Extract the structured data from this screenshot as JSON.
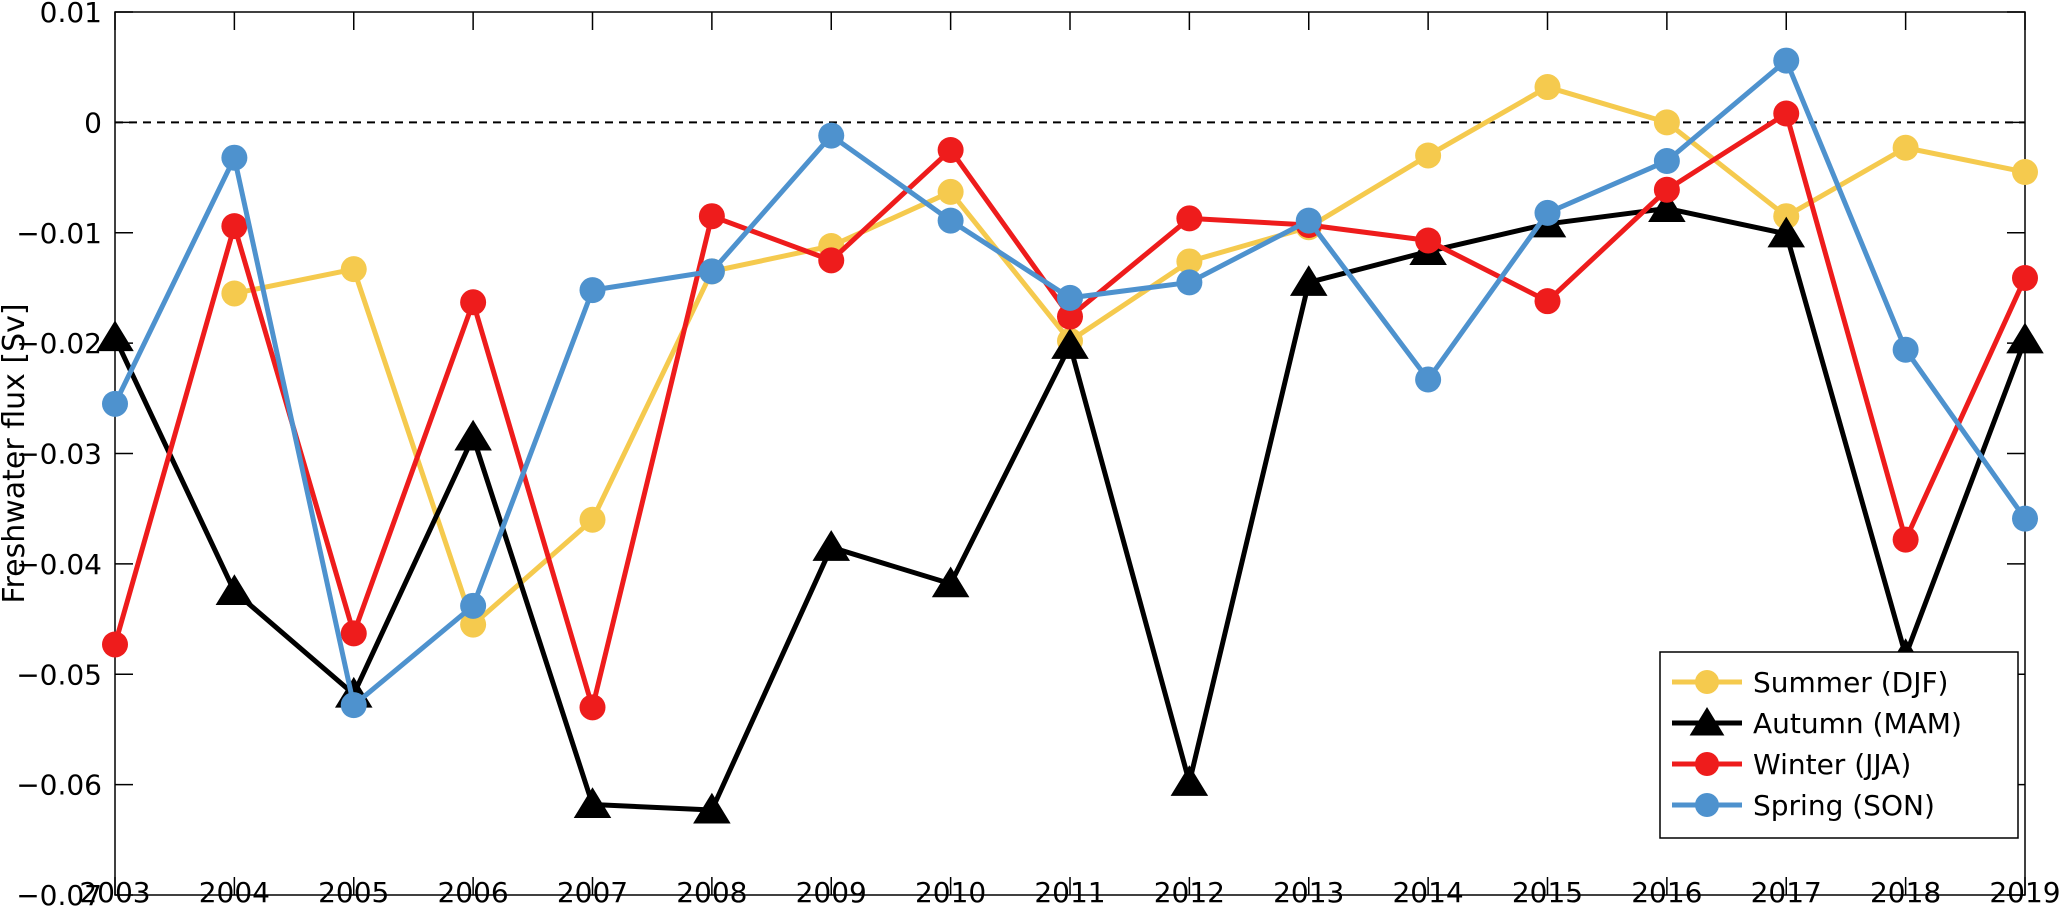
{
  "chart_data": {
    "type": "line",
    "title": "",
    "xlabel": "",
    "ylabel": "Freshwater flux [Sv]",
    "x": [
      2003,
      2004,
      2005,
      2006,
      2007,
      2008,
      2009,
      2010,
      2011,
      2012,
      2013,
      2014,
      2015,
      2016,
      2017,
      2018,
      2019
    ],
    "xticks": [
      "2003",
      "2004",
      "2005",
      "2006",
      "2007",
      "2008",
      "2009",
      "2010",
      "2011",
      "2012",
      "2013",
      "2014",
      "2015",
      "2016",
      "2017",
      "2018",
      "2019"
    ],
    "yticks": [
      "0.01",
      "0",
      "-0.01",
      "-0.02",
      "-0.03",
      "-0.04",
      "-0.05",
      "-0.06",
      "-0.07"
    ],
    "ytick_values": [
      0.01,
      0,
      -0.01,
      -0.02,
      -0.03,
      -0.04,
      -0.05,
      -0.06,
      -0.07
    ],
    "xlim": [
      2003,
      2019
    ],
    "ylim": [
      -0.07,
      0.01
    ],
    "grid": false,
    "reference_line": {
      "y": 0,
      "style": "dashed"
    },
    "legend_position": "bottom-right",
    "series": [
      {
        "name": "Summer (DJF)",
        "color": "#F5CA4E",
        "marker": "circle",
        "x": [
          2004,
          2005,
          2006,
          2007,
          2008,
          2009,
          2010,
          2011,
          2012,
          2013,
          2014,
          2015,
          2016,
          2017,
          2018,
          2019
        ],
        "values": [
          -0.0155,
          -0.0133,
          -0.0455,
          -0.036,
          -0.0135,
          -0.0112,
          -0.0063,
          -0.0198,
          -0.0126,
          -0.0095,
          -0.003,
          0.0032,
          0.0,
          -0.0085,
          -0.0023,
          -0.0045
        ]
      },
      {
        "name": "Autumn (MAM)",
        "color": "#000000",
        "marker": "triangle",
        "x": [
          2003,
          2004,
          2005,
          2006,
          2007,
          2008,
          2009,
          2010,
          2011,
          2012,
          2013,
          2014,
          2015,
          2016,
          2017,
          2018,
          2019
        ],
        "values": [
          -0.0195,
          -0.0425,
          -0.0518,
          -0.0285,
          -0.0618,
          -0.0623,
          -0.0385,
          -0.0418,
          -0.0202,
          -0.0598,
          -0.0145,
          -0.0117,
          -0.0092,
          -0.0078,
          -0.0101,
          -0.0483,
          -0.0197
        ]
      },
      {
        "name": "Winter (JJA)",
        "color": "#EE1C1C",
        "marker": "circle",
        "x": [
          2003,
          2004,
          2005,
          2006,
          2007,
          2008,
          2009,
          2010,
          2011,
          2012,
          2013,
          2014,
          2015,
          2016,
          2017,
          2018,
          2019
        ],
        "values": [
          -0.0473,
          -0.0094,
          -0.0463,
          -0.0163,
          -0.053,
          -0.0085,
          -0.0125,
          -0.0025,
          -0.0176,
          -0.0087,
          -0.0093,
          -0.0107,
          -0.0162,
          -0.0061,
          0.0008,
          -0.0378,
          -0.0141
        ]
      },
      {
        "name": "Spring (SON)",
        "color": "#4E92CE",
        "marker": "circle",
        "x": [
          2003,
          2004,
          2005,
          2006,
          2007,
          2008,
          2009,
          2010,
          2011,
          2012,
          2013,
          2014,
          2015,
          2016,
          2017,
          2018,
          2019
        ],
        "values": [
          -0.0255,
          -0.0032,
          -0.0528,
          -0.0438,
          -0.0152,
          -0.0135,
          -0.0012,
          -0.0089,
          -0.0159,
          -0.0145,
          -0.0089,
          -0.0233,
          -0.0082,
          -0.0035,
          0.0056,
          -0.0206,
          -0.0359
        ]
      }
    ]
  }
}
